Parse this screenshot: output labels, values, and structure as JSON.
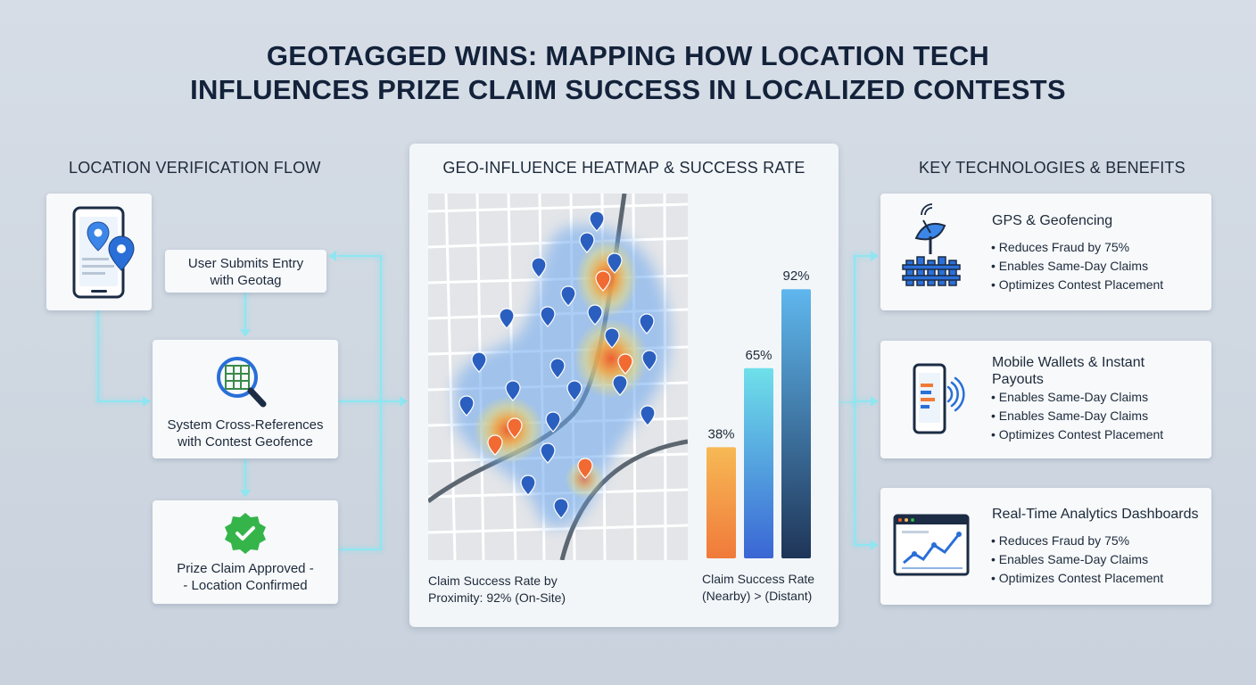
{
  "title": {
    "line1": "GEOTAGGED WINS: MAPPING HOW LOCATION TECH",
    "line2": "INFLUENCES PRIZE CLAIM SUCCESS IN LOCALIZED CONTESTS"
  },
  "left": {
    "heading": "LOCATION VERIFICATION FLOW",
    "step1": "User Submits Entry with Geotag",
    "step2_line1": "System Cross-References",
    "step2_line2": "with Contest Geofence",
    "step3_line1": "Prize Claim Approved -",
    "step3_line2": "- Location Confirmed"
  },
  "center": {
    "heading": "GEO-INFLUENCE HEATMAP & SUCCESS RATE",
    "map_caption_line1": "Claim Success Rate by",
    "map_caption_line2": "Proximity: 92% (On-Site)",
    "chart_caption_line1": "Claim Success Rate",
    "chart_caption_line2": "(Nearby) > (Distant)"
  },
  "chart_data": {
    "type": "bar",
    "categories": [
      "",
      "",
      ""
    ],
    "values": [
      38,
      65,
      92
    ],
    "value_labels": [
      "38%",
      "65%",
      "92%"
    ],
    "ylim": [
      0,
      100
    ],
    "grid": false,
    "colors": [
      [
        "#f7b955",
        "#f07a3a"
      ],
      [
        "#6fe0ea",
        "#3a66d4"
      ],
      [
        "#5fb7ee",
        "#1f3558"
      ]
    ]
  },
  "right": {
    "heading": "KEY TECHNOLOGIES & BENEFITS",
    "cards": [
      {
        "title": "GPS & Geofencing",
        "bullets": [
          "• Reduces Fraud by 75%",
          "• Enables Same-Day Claims",
          "• Optimizes Contest Placement"
        ]
      },
      {
        "title_line1": "Mobile Wallets & Instant",
        "title_line2": "Payouts",
        "bullets": [
          "• Enables Same-Day Claims",
          "• Enables Same-Day Claims",
          "• Optimizes Contest Placement"
        ]
      },
      {
        "title": "Real-Time Analytics Dashboards",
        "bullets": [
          "• Reduces Fraud by 75%",
          "• Enables Same-Day Claims",
          "• Optimizes Contest Placement"
        ]
      }
    ]
  },
  "colors": {
    "accent_blue": "#2b6fd6",
    "glow_line": "#8fe6f0",
    "approve_green": "#35b44a",
    "heat_red": "#f05a28"
  }
}
